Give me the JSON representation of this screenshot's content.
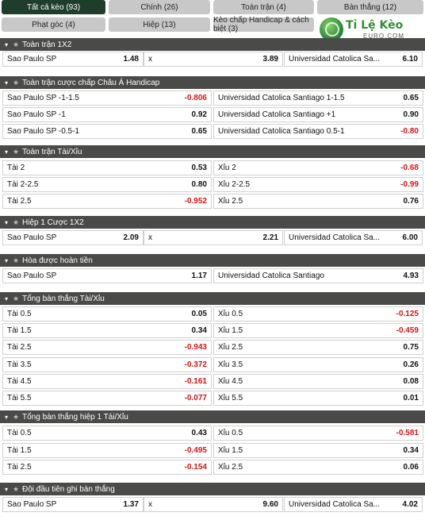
{
  "tabs": [
    {
      "label": "Tất cả kèo (93)",
      "active": true
    },
    {
      "label": "Chính (26)",
      "active": false
    },
    {
      "label": "Toàn trận (4)",
      "active": false
    },
    {
      "label": "Bàn thắng (12)",
      "active": false
    },
    {
      "label": "Phạt góc (4)",
      "active": false
    },
    {
      "label": "Hiệp (13)",
      "active": false
    },
    {
      "label": "Kèo chấp Handicap & cách biệt (3)",
      "active": false
    }
  ],
  "logo": {
    "title": "Tỉ Lệ Kèo",
    "subtitle": "EURO.COM"
  },
  "sections": [
    {
      "title": "Toàn trận 1X2",
      "rows": [
        [
          {
            "label": "Sao Paulo SP",
            "value": "1.48"
          },
          {
            "label": "x",
            "value": "3.89"
          },
          {
            "label": "Universidad Catolica Sa...",
            "value": "6.10"
          }
        ]
      ]
    },
    {
      "title": "Toàn trận cược chấp Châu Á Handicap",
      "rows": [
        [
          {
            "label": "Sao Paulo SP -1-1.5",
            "value": "-0.806"
          },
          {
            "label": "Universidad Catolica Santiago 1-1.5",
            "value": "0.65"
          }
        ],
        [
          {
            "label": "Sao Paulo SP -1",
            "value": "0.92"
          },
          {
            "label": "Universidad Catolica Santiago +1",
            "value": "0.90"
          }
        ],
        [
          {
            "label": "Sao Paulo SP -0.5-1",
            "value": "0.65"
          },
          {
            "label": "Universidad Catolica Santiago 0.5-1",
            "value": "-0.80"
          }
        ]
      ]
    },
    {
      "title": "Toàn trận Tài/Xỉu",
      "rows": [
        [
          {
            "label": "Tài 2",
            "value": "0.53"
          },
          {
            "label": "Xỉu 2",
            "value": "-0.68"
          }
        ],
        [
          {
            "label": "Tài 2-2.5",
            "value": "0.80"
          },
          {
            "label": "Xỉu 2-2.5",
            "value": "-0.99"
          }
        ],
        [
          {
            "label": "Tài 2.5",
            "value": "-0.952"
          },
          {
            "label": "Xỉu 2.5",
            "value": "0.76"
          }
        ]
      ]
    },
    {
      "title": "Hiệp 1 Cược 1X2",
      "rows": [
        [
          {
            "label": "Sao Paulo SP",
            "value": "2.09"
          },
          {
            "label": "x",
            "value": "2.21"
          },
          {
            "label": "Universidad Catolica Sa...",
            "value": "6.00"
          }
        ]
      ]
    },
    {
      "title": "Hòa được hoàn tiền",
      "rows": [
        [
          {
            "label": "Sao Paulo SP",
            "value": "1.17"
          },
          {
            "label": "Universidad Catolica Santiago",
            "value": "4.93"
          }
        ]
      ]
    },
    {
      "title": "Tổng bàn thắng Tài/Xỉu",
      "rows": [
        [
          {
            "label": "Tài 0.5",
            "value": "0.05"
          },
          {
            "label": "Xỉu 0.5",
            "value": "-0.125"
          }
        ],
        [
          {
            "label": "Tài 1.5",
            "value": "0.34"
          },
          {
            "label": "Xỉu 1.5",
            "value": "-0.459"
          }
        ],
        [
          {
            "label": "Tài 2.5",
            "value": "-0.943"
          },
          {
            "label": "Xỉu 2.5",
            "value": "0.75"
          }
        ],
        [
          {
            "label": "Tài 3.5",
            "value": "-0.372"
          },
          {
            "label": "Xỉu 3.5",
            "value": "0.26"
          }
        ],
        [
          {
            "label": "Tài 4.5",
            "value": "-0.161"
          },
          {
            "label": "Xỉu 4.5",
            "value": "0.08"
          }
        ],
        [
          {
            "label": "Tài 5.5",
            "value": "-0.077"
          },
          {
            "label": "Xỉu 5.5",
            "value": "0.01"
          }
        ]
      ]
    },
    {
      "title": "Tổng bàn thắng hiệp 1 Tài/Xỉu",
      "rows": [
        [
          {
            "label": "Tài 0.5",
            "value": "0.43"
          },
          {
            "label": "Xỉu 0.5",
            "value": "-0.581"
          }
        ],
        [
          {
            "label": "Tài 1.5",
            "value": "-0.495"
          },
          {
            "label": "Xỉu 1.5",
            "value": "0.34"
          }
        ],
        [
          {
            "label": "Tài 2.5",
            "value": "-0.154"
          },
          {
            "label": "Xỉu 2.5",
            "value": "0.06"
          }
        ]
      ]
    },
    {
      "title": "Đội đầu tiên ghi bàn thắng",
      "rows": [
        [
          {
            "label": "Sao Paulo SP",
            "value": "1.37"
          },
          {
            "label": "x",
            "value": "9.60"
          },
          {
            "label": "Universidad Catolica Sa...",
            "value": "4.02"
          }
        ]
      ]
    }
  ]
}
